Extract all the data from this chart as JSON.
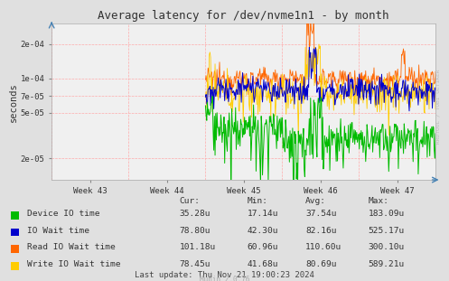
{
  "title": "Average latency for /dev/nvme1n1 - by month",
  "ylabel": "seconds",
  "bg_color": "#e0e0e0",
  "plot_bg_color": "#f0f0f0",
  "grid_color": "#ffaaaa",
  "x_labels": [
    "Week 43",
    "Week 44",
    "Week 45",
    "Week 46",
    "Week 47"
  ],
  "y_ticks": [
    2e-05,
    5e-05,
    7e-05,
    0.0001,
    0.0002
  ],
  "y_tick_labels": [
    "2e-05",
    "5e-05",
    "7e-05",
    "1e-04",
    "2e-04"
  ],
  "legend_colors": [
    "#00bb00",
    "#0000cc",
    "#ff6600",
    "#ffcc00"
  ],
  "legend_labels": [
    "Device IO time",
    "IO Wait time",
    "Read IO Wait time",
    "Write IO Wait time"
  ],
  "table_headers": [
    "Cur:",
    "Min:",
    "Avg:",
    "Max:"
  ],
  "table_data": [
    [
      "35.28u",
      "17.14u",
      "37.54u",
      "183.09u"
    ],
    [
      "78.80u",
      "42.30u",
      "82.16u",
      "525.17u"
    ],
    [
      "101.18u",
      "60.96u",
      "110.60u",
      "300.10u"
    ],
    [
      "78.45u",
      "41.68u",
      "80.69u",
      "589.21u"
    ]
  ],
  "footer": "Last update: Thu Nov 21 19:00:23 2024",
  "munin_label": "Munin 2.0.76",
  "rrdtool_label": "RRDTOOL / TOBI OETIKER"
}
